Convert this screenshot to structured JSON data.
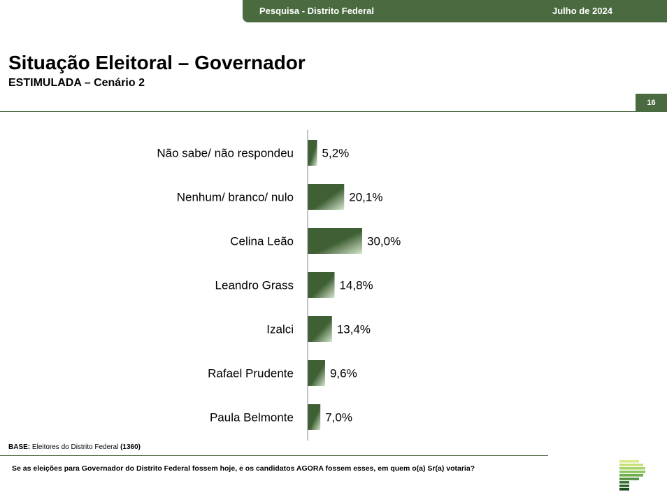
{
  "header": {
    "survey": "Pesquisa - Distrito Federal",
    "date": "Julho de 2024"
  },
  "title": "Situação Eleitoral – Governador",
  "subtitle": "ESTIMULADA – Cenário 2",
  "page_number": "16",
  "footer": {
    "base_label": "BASE:",
    "base_text": " Eleitores do Distrito Federal ",
    "base_count": "(1360)",
    "question": "Se as eleições para Governador do Distrito Federal fossem hoje, e os candidatos AGORA fossem esses, em quem o(a) Sr(a) votaria?"
  },
  "colors": {
    "brand_green": "#4a6b3f",
    "bar_dark": "#3f6034",
    "bar_light": "#d6e6cf"
  },
  "chart_data": {
    "type": "bar",
    "orientation": "horizontal",
    "categories": [
      "Não sabe/ não respondeu",
      "Nenhum/ branco/ nulo",
      "Celina Leão",
      "Leandro Grass",
      "Izalci",
      "Rafael Prudente",
      "Paula Belmonte"
    ],
    "values": [
      5.2,
      20.1,
      30.0,
      14.8,
      13.4,
      9.6,
      7.0
    ],
    "value_labels": [
      "5,2%",
      "20,1%",
      "30,0%",
      "14,8%",
      "13,4%",
      "9,6%",
      "7,0%"
    ],
    "unit": "%",
    "grid": false,
    "legend": "none"
  }
}
